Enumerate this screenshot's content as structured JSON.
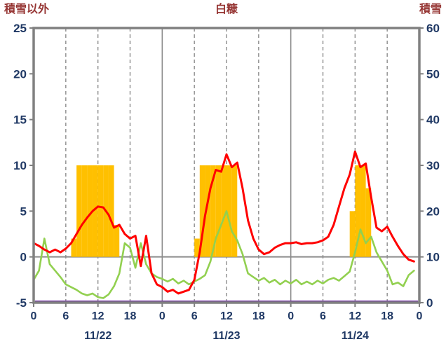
{
  "chart_data": {
    "type": "composite",
    "title": "白糠",
    "left_axis": {
      "label": "積雪以外",
      "min": -5,
      "max": 25,
      "ticks": [
        25,
        20,
        15,
        10,
        5,
        0,
        -5
      ]
    },
    "right_axis": {
      "label": "積雪",
      "min": 0,
      "max": 60,
      "ticks": [
        60,
        50,
        40,
        30,
        20,
        10,
        0
      ]
    },
    "x_axis": {
      "hours_per_day": 24,
      "tick_hours": [
        0,
        6,
        12,
        18
      ],
      "trailing_tick_label": "0",
      "day_labels": [
        "11/22",
        "11/23",
        "11/24"
      ]
    },
    "grid": {
      "vertical_dashed_at_hours": [
        6,
        12,
        18
      ],
      "solid_day_boundaries": true,
      "horizontal_zero_line": true
    },
    "legend": "none",
    "colors": {
      "bars": "#FFC000",
      "line_red": "#FF0000",
      "line_green": "#92D050",
      "line_purple": "#7030A0",
      "border": "#808080",
      "grid": "#8C8C8C",
      "tick_text": "#1F3864",
      "title_text": "#963634"
    },
    "series": [
      {
        "id": "bars",
        "type": "bar",
        "axis": "left",
        "values_by_day": [
          [
            0,
            0,
            0,
            0,
            0,
            0,
            0,
            2,
            10,
            10,
            10,
            10,
            10,
            10,
            10,
            3.5,
            0,
            0,
            0,
            0,
            0,
            0,
            0,
            0
          ],
          [
            0,
            0,
            0,
            0,
            0,
            0,
            2,
            10,
            10,
            10,
            10,
            10,
            10,
            10,
            0,
            0,
            0,
            0,
            0,
            0,
            0,
            0,
            0,
            0
          ],
          [
            0,
            0,
            0,
            0,
            0,
            0,
            0,
            0,
            0,
            0,
            0,
            5,
            10,
            10,
            7.5,
            0,
            0,
            0,
            0,
            0,
            0,
            0,
            0,
            0
          ]
        ]
      },
      {
        "id": "line-green",
        "type": "line",
        "axis": "left",
        "values_by_day": [
          [
            -2.5,
            -1.5,
            2.0,
            -0.8,
            -1.5,
            -2.2,
            -3.0,
            -3.3,
            -3.6,
            -4.0,
            -4.2,
            -4.0,
            -4.4,
            -4.5,
            -4.1,
            -3.2,
            -1.8,
            1.5,
            1.0,
            -1.2,
            1.5,
            -0.8,
            -1.8,
            -2.2
          ],
          [
            -2.4,
            -2.7,
            -2.4,
            -2.9,
            -2.6,
            -3.0,
            -2.7,
            -2.4,
            -2.0,
            -0.5,
            2.0,
            3.5,
            5.0,
            2.8,
            1.8,
            0.3,
            -1.8,
            -2.2,
            -2.6,
            -2.3,
            -2.8,
            -2.5,
            -3.0,
            -2.6
          ],
          [
            -2.9,
            -2.5,
            -3.0,
            -2.7,
            -3.0,
            -2.6,
            -2.9,
            -2.5,
            -2.3,
            -2.6,
            -2.1,
            -1.6,
            0.5,
            3.0,
            1.5,
            2.2,
            0.5,
            -0.5,
            -1.5,
            -3.0,
            -2.8,
            -3.2,
            -2.0,
            -1.5
          ]
        ]
      },
      {
        "id": "line-red",
        "type": "line",
        "axis": "left",
        "values_by_day": [
          [
            1.5,
            1.2,
            0.8,
            0.5,
            0.8,
            0.5,
            0.9,
            1.5,
            2.5,
            3.5,
            4.3,
            5.0,
            5.5,
            5.4,
            4.6,
            3.2,
            3.5,
            2.5,
            2.0,
            2.3,
            -1.0,
            2.3,
            -1.8,
            -3.0
          ],
          [
            -3.3,
            -3.8,
            -3.6,
            -4.0,
            -3.8,
            -3.6,
            -2.5,
            0.5,
            4.5,
            7.5,
            9.5,
            9.3,
            11.2,
            9.8,
            10.3,
            7.5,
            4.0,
            2.0,
            0.8,
            0.3,
            0.5,
            1.0,
            1.3,
            1.5
          ],
          [
            1.5,
            1.6,
            1.4,
            1.5,
            1.5,
            1.6,
            1.8,
            2.2,
            3.5,
            5.5,
            7.5,
            9.0,
            11.5,
            9.8,
            10.2,
            6.5,
            3.2,
            2.8,
            3.3,
            2.2,
            1.2,
            0.3,
            -0.3,
            -0.5
          ]
        ]
      },
      {
        "id": "line-purple",
        "type": "hline",
        "axis": "right",
        "value": 0
      }
    ]
  }
}
